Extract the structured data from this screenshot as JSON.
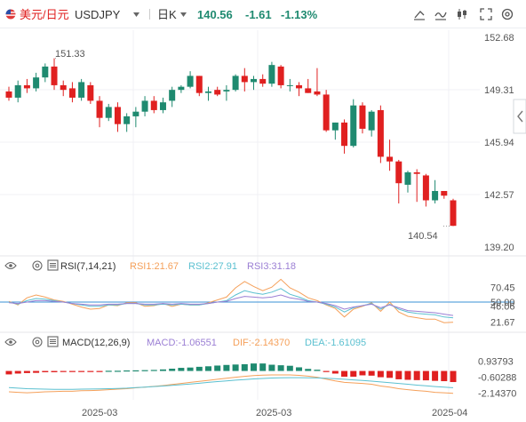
{
  "header": {
    "pair_name": "美元/日元",
    "symbol": "USDJPY",
    "timeframe": "日K",
    "last_price": "140.56",
    "change": "-1.61",
    "change_pct": "-1.13%"
  },
  "colors": {
    "up": "#1f8a70",
    "down": "#e02020",
    "price_axis": "#e02020",
    "rsi1": "#f5a05a",
    "rsi2": "#5bc0d0",
    "rsi3": "#9b7fd4",
    "rsi_line": "#3a90d6",
    "macd_label": "#9b7fd4",
    "dif": "#f5a05a",
    "dea": "#5bc0d0"
  },
  "chart_data": {
    "type": "candlestick",
    "price_axis": {
      "ticks": [
        "152.68",
        "149.31",
        "145.94",
        "142.57",
        "139.20"
      ],
      "range": [
        139.2,
        152.68
      ]
    },
    "x_axis": {
      "ticks": [
        "2025-03",
        "2025-03",
        "2025-04"
      ]
    },
    "annotations": {
      "high": "151.33",
      "low": "140.54"
    },
    "candles": [
      [
        149.2,
        149.5,
        148.6,
        148.8
      ],
      [
        148.8,
        149.9,
        148.5,
        149.6
      ],
      [
        149.6,
        150.0,
        149.1,
        149.4
      ],
      [
        149.4,
        150.4,
        149.2,
        150.1
      ],
      [
        150.1,
        151.0,
        149.8,
        150.8
      ],
      [
        150.8,
        151.33,
        149.3,
        149.6
      ],
      [
        149.6,
        149.9,
        148.9,
        149.3
      ],
      [
        149.4,
        149.8,
        148.5,
        148.8
      ],
      [
        148.8,
        150.0,
        148.6,
        149.8
      ],
      [
        149.6,
        149.8,
        148.4,
        148.6
      ],
      [
        148.6,
        148.9,
        146.9,
        147.5
      ],
      [
        147.5,
        148.4,
        147.3,
        148.2
      ],
      [
        148.2,
        148.5,
        146.6,
        147.1
      ],
      [
        147.1,
        147.8,
        146.6,
        147.6
      ],
      [
        147.6,
        148.2,
        146.9,
        147.9
      ],
      [
        147.9,
        148.9,
        147.6,
        148.6
      ],
      [
        148.6,
        148.9,
        147.8,
        148.0
      ],
      [
        148.0,
        148.8,
        147.8,
        148.5
      ],
      [
        148.6,
        149.5,
        148.2,
        149.3
      ],
      [
        149.3,
        149.6,
        149.1,
        149.5
      ],
      [
        149.5,
        150.5,
        149.4,
        150.2
      ],
      [
        150.2,
        150.2,
        148.9,
        149.1
      ],
      [
        149.1,
        149.5,
        148.6,
        149.2
      ],
      [
        149.3,
        149.5,
        148.9,
        149.0
      ],
      [
        149.2,
        149.6,
        148.6,
        149.3
      ],
      [
        149.3,
        150.3,
        149.2,
        150.2
      ],
      [
        150.2,
        150.7,
        149.2,
        149.8
      ],
      [
        149.8,
        150.2,
        149.3,
        150.0
      ],
      [
        150.0,
        150.3,
        149.5,
        149.7
      ],
      [
        149.7,
        151.1,
        149.5,
        150.9
      ],
      [
        150.8,
        150.9,
        149.4,
        149.6
      ],
      [
        149.6,
        150.0,
        149.2,
        149.6
      ],
      [
        149.6,
        149.8,
        148.9,
        149.4
      ],
      [
        149.4,
        150.0,
        149.1,
        149.1
      ],
      [
        149.2,
        150.7,
        148.9,
        149.0
      ],
      [
        149.0,
        149.3,
        146.6,
        146.7
      ],
      [
        146.7,
        147.2,
        146.1,
        147.2
      ],
      [
        147.2,
        147.4,
        145.2,
        145.7
      ],
      [
        145.7,
        148.7,
        145.6,
        148.3
      ],
      [
        148.3,
        148.5,
        146.5,
        146.8
      ],
      [
        146.7,
        148.0,
        146.3,
        147.9
      ],
      [
        148.0,
        148.3,
        144.6,
        145.0
      ],
      [
        145.0,
        146.1,
        144.1,
        144.7
      ],
      [
        144.7,
        144.8,
        142.0,
        143.3
      ],
      [
        143.2,
        144.1,
        142.7,
        144.0
      ],
      [
        144.0,
        144.2,
        142.1,
        143.9
      ],
      [
        143.8,
        143.9,
        141.8,
        142.2
      ],
      [
        142.2,
        143.5,
        142.0,
        142.8
      ],
      [
        142.8,
        142.8,
        142.3,
        142.5
      ],
      [
        142.2,
        142.3,
        140.54,
        140.56
      ]
    ],
    "rsi": {
      "label": "RSI(7,14,21)",
      "values_text": {
        "rsi1": "RSI1:21.67",
        "rsi2": "RSI2:27.91",
        "rsi3": "RSI3:31.18"
      },
      "axis_ticks": [
        "70.45",
        "50.00",
        "46.06",
        "21.67"
      ],
      "range": [
        10,
        85
      ],
      "reference_level": 50.0,
      "rsi1": [
        51,
        46,
        56,
        60,
        57,
        53,
        51,
        47,
        43,
        40,
        41,
        46,
        45,
        49,
        49,
        44,
        45,
        48,
        44,
        47,
        46,
        46,
        49,
        53,
        57,
        70,
        79,
        72,
        66,
        71,
        82,
        70,
        64,
        56,
        52,
        46,
        41,
        29,
        40,
        44,
        49,
        37,
        50,
        36,
        30,
        28,
        26,
        26,
        21,
        21.67
      ],
      "rsi2": [
        50,
        47,
        52,
        55,
        54,
        52,
        50,
        48,
        46,
        44,
        44,
        46,
        46,
        48,
        48,
        46,
        46,
        47,
        46,
        47,
        46,
        46,
        48,
        50,
        52,
        60,
        66,
        63,
        61,
        64,
        69,
        61,
        57,
        52,
        50,
        47,
        43,
        36,
        42,
        45,
        48,
        40,
        47,
        40,
        36,
        34,
        33,
        32,
        29,
        27.91
      ],
      "rsi3": [
        49,
        48,
        50,
        52,
        52,
        51,
        50,
        48,
        47,
        46,
        46,
        47,
        47,
        48,
        48,
        47,
        47,
        48,
        47,
        48,
        47,
        47,
        48,
        50,
        51,
        55,
        58,
        57,
        56,
        57,
        60,
        56,
        54,
        51,
        50,
        48,
        45,
        40,
        43,
        45,
        47,
        42,
        46,
        42,
        38,
        37,
        36,
        35,
        33,
        31.18
      ]
    },
    "macd": {
      "label": "MACD(12,26,9)",
      "values_text": {
        "macd": "MACD:-1.06551",
        "dif": "DIF:-2.14370",
        "dea": "DEA:-1.61095"
      },
      "axis_ticks": [
        "0.93793",
        "-0.60288",
        "-2.14370"
      ],
      "range": [
        -2.6,
        1.5
      ],
      "hist": [
        -0.33,
        -0.25,
        -0.2,
        -0.18,
        -0.12,
        -0.12,
        -0.1,
        -0.09,
        -0.05,
        -0.03,
        -0.01,
        0.02,
        0.02,
        0.05,
        0.06,
        0.08,
        0.1,
        0.15,
        0.22,
        0.3,
        0.33,
        0.4,
        0.45,
        0.52,
        0.58,
        0.62,
        0.65,
        0.72,
        0.72,
        0.6,
        0.55,
        0.5,
        0.35,
        0.2,
        0.12,
        -0.1,
        -0.25,
        -0.55,
        -0.55,
        -0.42,
        -0.45,
        -0.6,
        -0.66,
        -0.8,
        -0.85,
        -0.88,
        -0.9,
        -0.95,
        -0.98,
        -1.06551
      ],
      "dif": [
        -2.0,
        -2.05,
        -2.1,
        -2.05,
        -2.0,
        -1.98,
        -1.95,
        -1.95,
        -1.9,
        -1.88,
        -1.85,
        -1.8,
        -1.75,
        -1.7,
        -1.62,
        -1.55,
        -1.48,
        -1.4,
        -1.3,
        -1.2,
        -1.1,
        -1.0,
        -0.9,
        -0.8,
        -0.7,
        -0.6,
        -0.52,
        -0.45,
        -0.4,
        -0.38,
        -0.38,
        -0.38,
        -0.42,
        -0.5,
        -0.6,
        -0.78,
        -0.95,
        -1.1,
        -1.15,
        -1.2,
        -1.28,
        -1.45,
        -1.55,
        -1.7,
        -1.8,
        -1.88,
        -1.95,
        -2.05,
        -2.1,
        -2.1437
      ],
      "dea": [
        -1.6,
        -1.65,
        -1.7,
        -1.72,
        -1.75,
        -1.76,
        -1.76,
        -1.76,
        -1.75,
        -1.74,
        -1.72,
        -1.7,
        -1.68,
        -1.65,
        -1.6,
        -1.55,
        -1.5,
        -1.45,
        -1.38,
        -1.32,
        -1.25,
        -1.18,
        -1.1,
        -1.02,
        -0.95,
        -0.88,
        -0.82,
        -0.76,
        -0.72,
        -0.68,
        -0.66,
        -0.64,
        -0.64,
        -0.65,
        -0.67,
        -0.7,
        -0.75,
        -0.8,
        -0.86,
        -0.92,
        -0.98,
        -1.05,
        -1.12,
        -1.2,
        -1.28,
        -1.36,
        -1.43,
        -1.5,
        -1.56,
        -1.61095
      ]
    }
  }
}
